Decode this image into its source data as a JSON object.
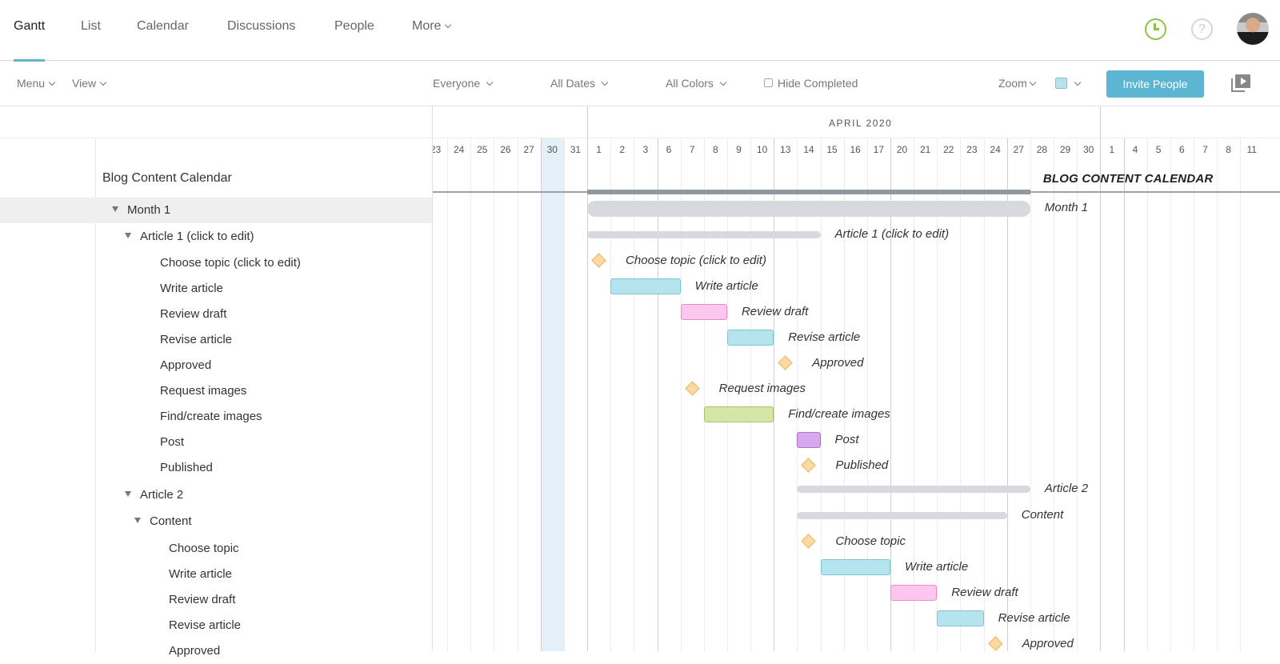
{
  "nav": {
    "tabs": [
      {
        "label": "Gantt",
        "active": true
      },
      {
        "label": "List"
      },
      {
        "label": "Calendar"
      },
      {
        "label": "Discussions"
      },
      {
        "label": "People"
      },
      {
        "label": "More"
      }
    ],
    "icons": [
      "clock-icon",
      "help-icon",
      "avatar"
    ]
  },
  "toolbar": {
    "menu": "Menu",
    "view": "View",
    "everyone": "Everyone",
    "all_dates": "All Dates",
    "all_colors": "All Colors",
    "hide_completed": "Hide Completed",
    "zoom": "Zoom",
    "color_swatch": "#b5e3ee",
    "invite": "Invite People"
  },
  "timeline": {
    "month_label": "APRIL 2020",
    "days": [
      "23",
      "24",
      "25",
      "26",
      "27",
      "30",
      "31",
      "1",
      "2",
      "3",
      "6",
      "7",
      "8",
      "9",
      "10",
      "13",
      "14",
      "15",
      "16",
      "17",
      "20",
      "21",
      "22",
      "23",
      "24",
      "27",
      "28",
      "29",
      "30",
      "1",
      "4",
      "5",
      "6",
      "7",
      "8",
      "11"
    ],
    "highlight_index": 5,
    "today_label": "30"
  },
  "project": {
    "title": "Blog Content Calendar",
    "title_bar_label": "BLOG CONTENT CALENDAR"
  },
  "tree": [
    {
      "label": "Month 1",
      "level": 1,
      "toggle": true,
      "selected": true
    },
    {
      "label": "Article 1 (click to edit)",
      "level": 2,
      "toggle": true
    },
    {
      "label": "Choose topic (click to edit)",
      "level": 3
    },
    {
      "label": "Write article",
      "level": 3
    },
    {
      "label": "Review draft",
      "level": 3
    },
    {
      "label": "Revise article",
      "level": 3
    },
    {
      "label": "Approved",
      "level": 3
    },
    {
      "label": "Request images",
      "level": 3
    },
    {
      "label": "Find/create images",
      "level": 3
    },
    {
      "label": "Post",
      "level": 3
    },
    {
      "label": "Published",
      "level": 3
    },
    {
      "label": "Article 2",
      "level": 2,
      "toggle": true
    },
    {
      "label": "Content",
      "level": 3,
      "toggle": true
    },
    {
      "label": "Choose topic",
      "level": 4
    },
    {
      "label": "Write article",
      "level": 4
    },
    {
      "label": "Review draft",
      "level": 4
    },
    {
      "label": "Revise article",
      "level": 4
    },
    {
      "label": "Approved",
      "level": 4
    }
  ],
  "bars": [
    {
      "label": "Month 1",
      "type": "summary-big",
      "start": 7,
      "end": 26
    },
    {
      "label": "Article 1 (click to edit)",
      "type": "summary",
      "start": 7,
      "end": 17
    },
    {
      "label": "Choose topic (click to edit)",
      "type": "milestone",
      "start": 7
    },
    {
      "label": "Write article",
      "type": "task",
      "start": 8,
      "end": 11,
      "color": "#b5e3ee",
      "border": "#7dc3d3"
    },
    {
      "label": "Review draft",
      "type": "task",
      "start": 11,
      "end": 13,
      "color": "#fdc6ec",
      "border": "#e58dcb"
    },
    {
      "label": "Revise article",
      "type": "task",
      "start": 13,
      "end": 15,
      "color": "#b5e3ee",
      "border": "#7dc3d3"
    },
    {
      "label": "Approved",
      "type": "milestone",
      "start": 15
    },
    {
      "label": "Request images",
      "type": "milestone",
      "start": 11
    },
    {
      "label": "Find/create images",
      "type": "task",
      "start": 12,
      "end": 15,
      "color": "#d4e5a7",
      "border": "#a8c26a"
    },
    {
      "label": "Post",
      "type": "task",
      "start": 16,
      "end": 17,
      "color": "#d8a8ec",
      "border": "#b070cc"
    },
    {
      "label": "Published",
      "type": "milestone",
      "start": 16
    },
    {
      "label": "Article 2",
      "type": "summary",
      "start": 16,
      "end": 26
    },
    {
      "label": "Content",
      "type": "summary",
      "start": 16,
      "end": 25
    },
    {
      "label": "Choose topic",
      "type": "milestone",
      "start": 16
    },
    {
      "label": "Write article",
      "type": "task",
      "start": 17,
      "end": 20,
      "color": "#b5e3ee",
      "border": "#7dc3d3"
    },
    {
      "label": "Review draft",
      "type": "task",
      "start": 20,
      "end": 22,
      "color": "#fdc6ec",
      "border": "#e58dcb"
    },
    {
      "label": "Revise article",
      "type": "task",
      "start": 22,
      "end": 24,
      "color": "#b5e3ee",
      "border": "#7dc3d3"
    },
    {
      "label": "Approved",
      "type": "milestone",
      "start": 24
    }
  ]
}
